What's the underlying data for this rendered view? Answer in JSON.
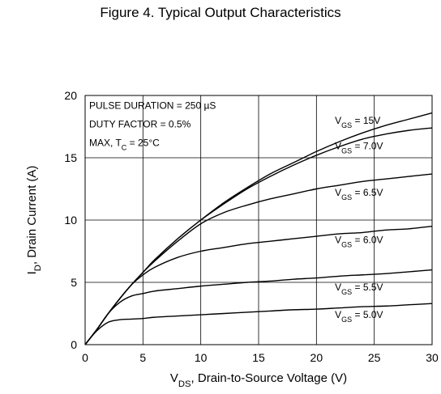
{
  "figure_title": "Figure 4. Typical Output Characteristics",
  "chart_data": {
    "type": "line",
    "title": "Figure 4. Typical Output Characteristics",
    "xlabel": {
      "main": "V",
      "sub": "DS",
      "rest": ", Drain-to-Source Voltage (V)"
    },
    "ylabel": {
      "main": "I",
      "sub": "D",
      "rest": ", Drain Current (A)"
    },
    "xlim": [
      0,
      30
    ],
    "ylim": [
      0,
      20
    ],
    "x_ticks": [
      0,
      5,
      10,
      15,
      20,
      25,
      30
    ],
    "y_ticks": [
      0,
      5,
      10,
      15,
      20
    ],
    "grid": true,
    "annotations": [
      {
        "main": "PULSE DURATION = 250 ",
        "sub": "",
        "rest": "µS"
      },
      {
        "main": "DUTY FACTOR = 0.5%",
        "sub": "",
        "rest": ""
      },
      {
        "main": "MAX, T",
        "sub": "C",
        "rest": " = 25°C"
      }
    ],
    "series": [
      {
        "name": "VGS = 15V",
        "label": {
          "main": "V",
          "sub": "GS",
          "rest": " = 15V"
        },
        "x": [
          0,
          1,
          2,
          3,
          4,
          5,
          6,
          8,
          10,
          12,
          14,
          16,
          18,
          20,
          22,
          24,
          26,
          28,
          30
        ],
        "y": [
          0,
          1.2,
          2.5,
          3.7,
          4.8,
          5.8,
          6.8,
          8.5,
          10.0,
          11.4,
          12.6,
          13.7,
          14.6,
          15.5,
          16.3,
          17.0,
          17.6,
          18.1,
          18.6
        ]
      },
      {
        "name": "VGS = 7.0V",
        "label": {
          "main": "V",
          "sub": "GS",
          "rest": " = 7.0V"
        },
        "x": [
          0,
          1,
          2,
          3,
          4,
          5,
          6,
          8,
          10,
          12,
          14,
          16,
          18,
          20,
          22,
          24,
          26,
          28,
          30
        ],
        "y": [
          0,
          1.2,
          2.5,
          3.7,
          4.8,
          5.8,
          6.8,
          8.5,
          10.0,
          11.3,
          12.5,
          13.5,
          14.4,
          15.2,
          15.9,
          16.5,
          16.9,
          17.2,
          17.4
        ]
      },
      {
        "name": "VGS = 6.5V",
        "label": {
          "main": "V",
          "sub": "GS",
          "rest": " = 6.5V"
        },
        "x": [
          0,
          1,
          2,
          3,
          4,
          5,
          6,
          8,
          10,
          12,
          14,
          16,
          18,
          20,
          22,
          24,
          26,
          28,
          30
        ],
        "y": [
          0,
          1.2,
          2.5,
          3.7,
          4.8,
          5.8,
          6.7,
          8.3,
          9.7,
          10.6,
          11.2,
          11.7,
          12.1,
          12.5,
          12.8,
          13.1,
          13.3,
          13.5,
          13.7
        ]
      },
      {
        "name": "VGS = 6.0V",
        "label": {
          "main": "V",
          "sub": "GS",
          "rest": " = 6.0V"
        },
        "x": [
          0,
          1,
          2,
          3,
          4,
          5,
          6,
          8,
          10,
          12,
          14,
          16,
          18,
          20,
          22,
          24,
          26,
          28,
          30
        ],
        "y": [
          0,
          1.2,
          2.5,
          3.7,
          4.8,
          5.6,
          6.2,
          7.0,
          7.5,
          7.8,
          8.1,
          8.3,
          8.5,
          8.7,
          8.9,
          9.0,
          9.2,
          9.3,
          9.5
        ]
      },
      {
        "name": "VGS = 5.5V",
        "label": {
          "main": "V",
          "sub": "GS",
          "rest": " = 5.5V"
        },
        "x": [
          0,
          1,
          2,
          3,
          4,
          5,
          6,
          8,
          10,
          12,
          14,
          16,
          18,
          20,
          22,
          24,
          26,
          28,
          30
        ],
        "y": [
          0,
          1.2,
          2.5,
          3.4,
          3.9,
          4.1,
          4.3,
          4.5,
          4.7,
          4.85,
          5.0,
          5.1,
          5.25,
          5.35,
          5.5,
          5.6,
          5.7,
          5.85,
          6.0
        ]
      },
      {
        "name": "VGS = 5.0V",
        "label": {
          "main": "V",
          "sub": "GS",
          "rest": " = 5.0V"
        },
        "x": [
          0,
          1,
          2,
          3,
          4,
          5,
          6,
          8,
          10,
          12,
          14,
          16,
          18,
          20,
          22,
          24,
          26,
          28,
          30
        ],
        "y": [
          0,
          1.1,
          1.8,
          2.0,
          2.05,
          2.1,
          2.2,
          2.3,
          2.4,
          2.5,
          2.6,
          2.7,
          2.8,
          2.85,
          2.95,
          3.05,
          3.1,
          3.2,
          3.3
        ]
      }
    ],
    "curve_label_positions_data": [
      {
        "x": 21.6,
        "y": 18.0
      },
      {
        "x": 21.6,
        "y": 15.95
      },
      {
        "x": 21.6,
        "y": 12.2
      },
      {
        "x": 21.6,
        "y": 8.4
      },
      {
        "x": 21.6,
        "y": 4.6
      },
      {
        "x": 21.6,
        "y": 2.4
      }
    ]
  }
}
